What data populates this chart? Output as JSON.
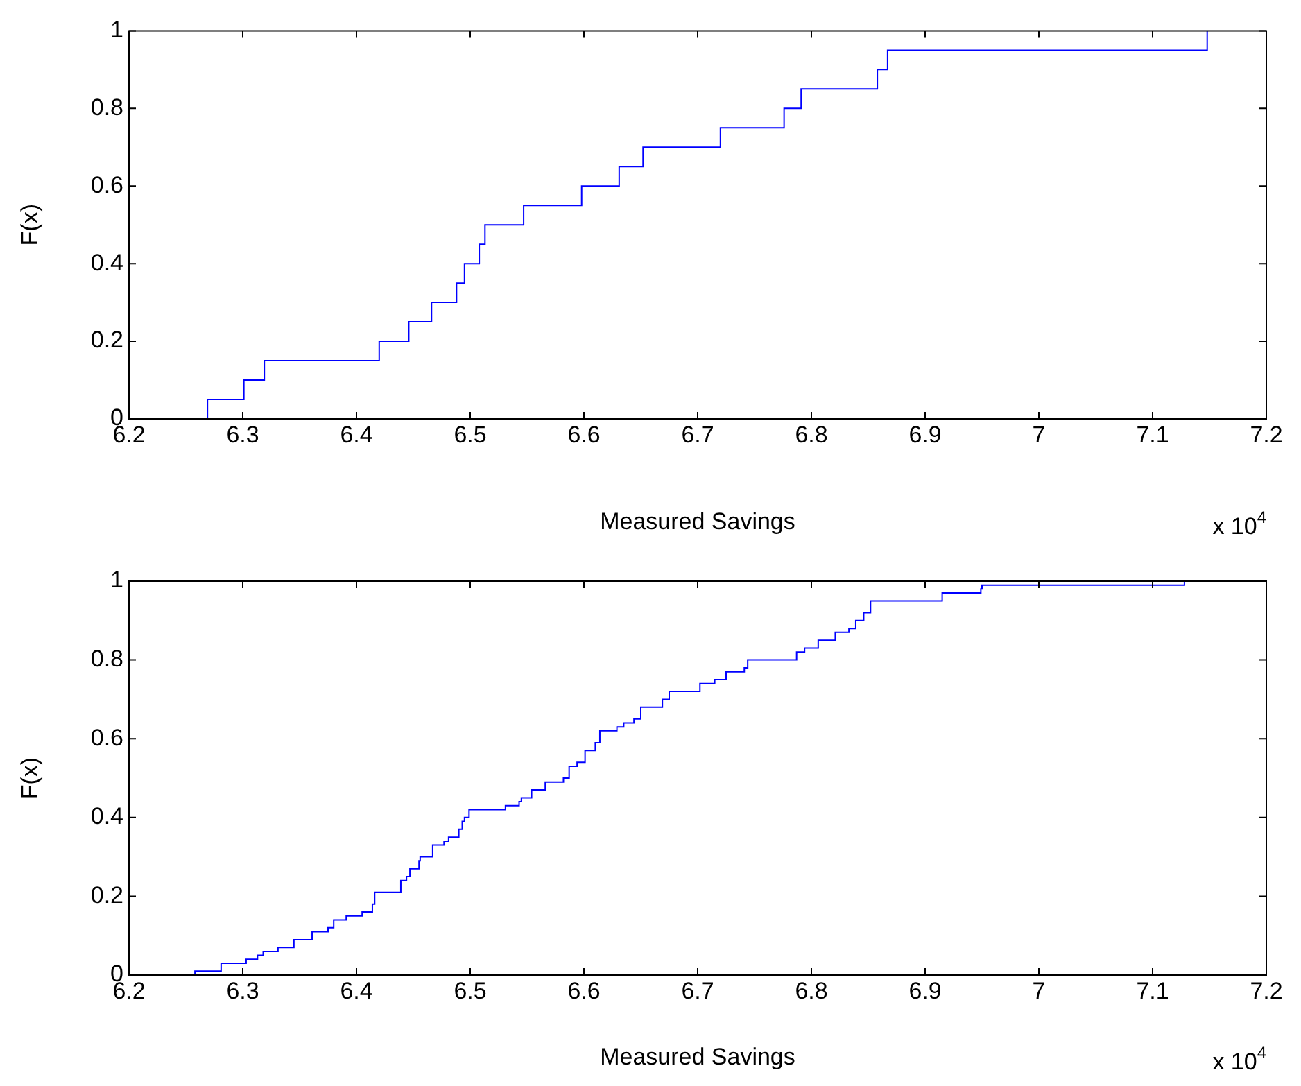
{
  "chart_data": [
    {
      "type": "step",
      "xlabel": "Measured Savings",
      "ylabel": "F(x)",
      "annotations": [
        "x 10$^{4}$"
      ],
      "color": "#0000ff",
      "grid": false,
      "x": [
        6.269,
        6.269,
        6.301,
        6.319,
        6.42,
        6.446,
        6.466,
        6.488,
        6.495,
        6.508,
        6.513,
        6.547,
        6.598,
        6.631,
        6.652,
        6.72,
        6.776,
        6.791,
        6.858,
        6.867,
        7.148
      ],
      "values": [
        0,
        0.05,
        0.1,
        0.15,
        0.2,
        0.25,
        0.3,
        0.35,
        0.4,
        0.45,
        0.5,
        0.55,
        0.6,
        0.65,
        0.7,
        0.75,
        0.8,
        0.85,
        0.9,
        0.95,
        1
      ],
      "xlim": [
        6.2,
        7.2
      ],
      "xticks": [
        6.2,
        6.3,
        6.4,
        6.5,
        6.6,
        6.7,
        6.8,
        6.9,
        7,
        7.1,
        7.2
      ],
      "ylim": [
        0,
        1
      ],
      "yticks": [
        0,
        0.2,
        0.4,
        0.6,
        0.8,
        1
      ]
    },
    {
      "type": "step",
      "xlabel": "Measured Savings",
      "ylabel": "F(x)",
      "annotations": [
        "x 10$^{4}$"
      ],
      "color": "#0000ff",
      "grid": false,
      "x": [
        6.258,
        6.258,
        6.281,
        6.303,
        6.313,
        6.318,
        6.331,
        6.345,
        6.361,
        6.375,
        6.38,
        6.391,
        6.405,
        6.414,
        6.416,
        6.439,
        6.444,
        6.447,
        6.455,
        6.456,
        6.467,
        6.477,
        6.481,
        6.49,
        6.493,
        6.495,
        6.499,
        6.531,
        6.543,
        6.545,
        6.554,
        6.566,
        6.582,
        6.587,
        6.594,
        6.601,
        6.61,
        6.614,
        6.629,
        6.635,
        6.644,
        6.65,
        6.669,
        6.675,
        6.702,
        6.715,
        6.725,
        6.741,
        6.744,
        6.751,
        6.787,
        6.794,
        6.806,
        6.821,
        6.833,
        6.839,
        6.846,
        6.852,
        6.87,
        6.915,
        6.949,
        6.95,
        7.128
      ],
      "values": [
        0,
        0.01,
        0.03,
        0.04,
        0.05,
        0.06,
        0.07,
        0.09,
        0.11,
        0.12,
        0.14,
        0.15,
        0.16,
        0.18,
        0.21,
        0.24,
        0.25,
        0.27,
        0.29,
        0.3,
        0.33,
        0.34,
        0.35,
        0.37,
        0.39,
        0.4,
        0.42,
        0.43,
        0.44,
        0.45,
        0.47,
        0.49,
        0.5,
        0.53,
        0.54,
        0.57,
        0.59,
        0.62,
        0.63,
        0.64,
        0.65,
        0.68,
        0.7,
        0.72,
        0.74,
        0.75,
        0.77,
        0.78,
        0.8,
        0.8,
        0.82,
        0.83,
        0.85,
        0.87,
        0.88,
        0.9,
        0.92,
        0.95,
        0.95,
        0.97,
        0.98,
        0.99,
        1
      ],
      "xlim": [
        6.2,
        7.2
      ],
      "xticks": [
        6.2,
        6.3,
        6.4,
        6.5,
        6.6,
        6.7,
        6.8,
        6.9,
        7,
        7.1,
        7.2
      ],
      "ylim": [
        0,
        1
      ],
      "yticks": [
        0,
        0.2,
        0.4,
        0.6,
        0.8,
        1
      ]
    }
  ]
}
